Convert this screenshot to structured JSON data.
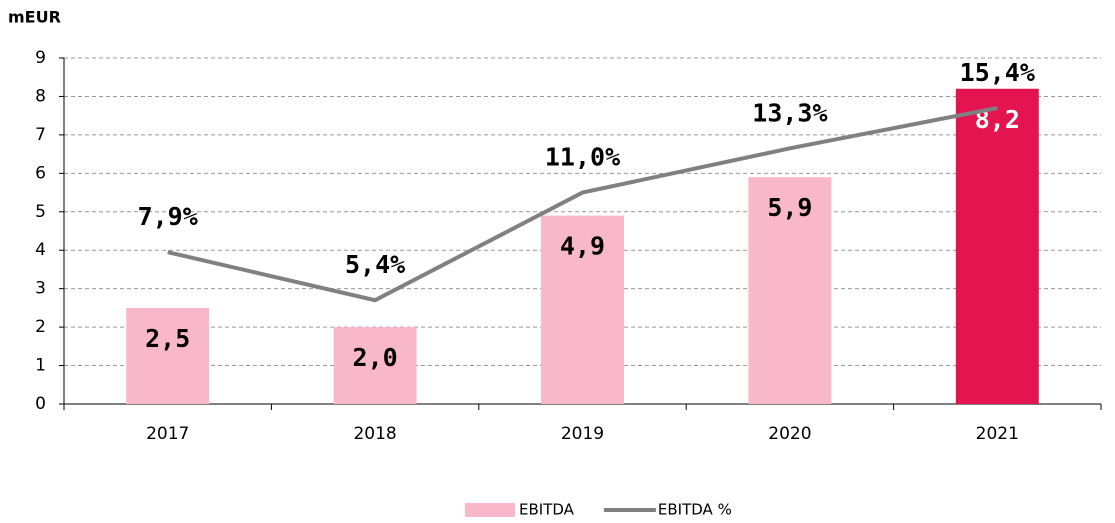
{
  "chart_data": {
    "type": "bar",
    "y_label": "mEUR",
    "categories": [
      "2017",
      "2018",
      "2019",
      "2020",
      "2021"
    ],
    "series": [
      {
        "name": "EBITDA",
        "type": "bar",
        "colors": [
          "#f9b8ca",
          "#f9b8ca",
          "#f9b8ca",
          "#f9b8ca",
          "#e3144f"
        ],
        "values": [
          2.5,
          2.0,
          4.9,
          5.9,
          8.2
        ],
        "value_labels": [
          "2,5",
          "2,0",
          "4,9",
          "5,9",
          "8,2"
        ]
      },
      {
        "name": "EBITDA %",
        "type": "line",
        "axis": "y2",
        "color": "#808080",
        "values": [
          7.9,
          5.4,
          11.0,
          13.3,
          15.4
        ],
        "value_labels": [
          "7,9%",
          "5,4%",
          "11,0%",
          "13,3%",
          "15,4%"
        ]
      }
    ],
    "ylim": [
      0,
      9
    ],
    "yticks": [
      0,
      1,
      2,
      3,
      4,
      5,
      6,
      7,
      8,
      9
    ],
    "y2lim": [
      0,
      18
    ],
    "grid": true,
    "legend": "bottom"
  }
}
